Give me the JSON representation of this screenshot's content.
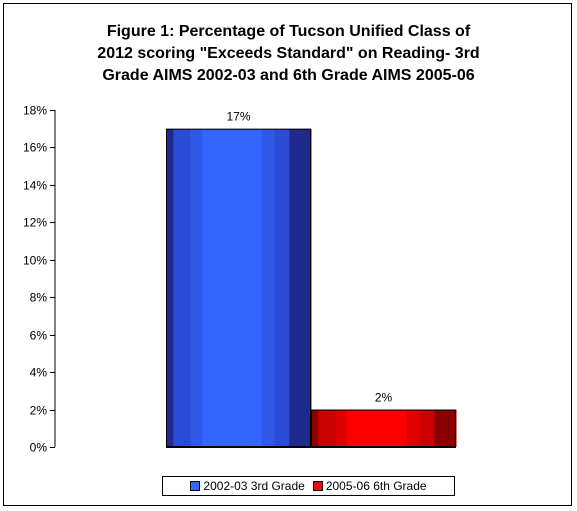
{
  "chart_data": {
    "type": "bar",
    "title_lines": [
      "Figure 1: Percentage of Tucson Unified Class of",
      "2012 scoring \"Exceeds Standard\" on Reading- 3rd",
      "Grade AIMS 2002-03 and 6th Grade AIMS 2005-06"
    ],
    "ylim": [
      0,
      18
    ],
    "y_ticks": [
      "0%",
      "2%",
      "4%",
      "6%",
      "8%",
      "10%",
      "12%",
      "14%",
      "16%",
      "18%"
    ],
    "grid": false,
    "legend_position": "bottom",
    "series": [
      {
        "name": "2002-03 3rd Grade",
        "value": 17,
        "label": "17%",
        "color": "#3366ff",
        "dark": "#1f2a8c"
      },
      {
        "name": "2005-06 6th Grade",
        "value": 2,
        "label": "2%",
        "color": "#ff0000",
        "dark": "#8a0000"
      }
    ]
  }
}
